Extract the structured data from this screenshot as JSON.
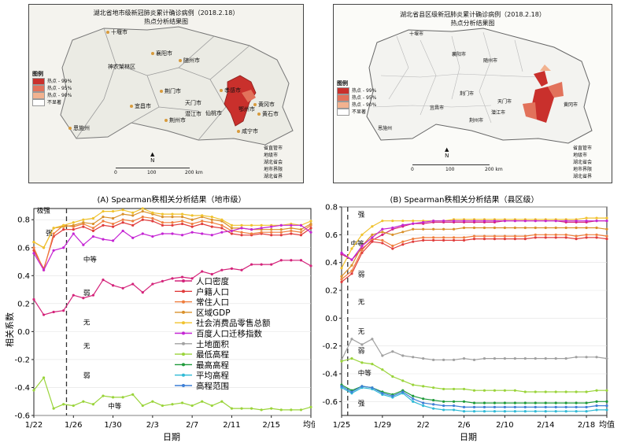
{
  "map_left": {
    "title_line1": "湖北省地市级新冠肺炎累计确诊病例（2018.2.18）",
    "title_line2": "热点分析结果图",
    "legend_title": "图例",
    "legend_items": [
      "热点 - 99%",
      "热点 - 95%",
      "热点 - 90%",
      "不显著"
    ],
    "legend_colors": [
      "#c9302c",
      "#e2725b",
      "#f2b28f",
      "#ffffff"
    ],
    "right_legend": [
      "省直管市",
      "地级市",
      "湖北省会",
      "地市界限",
      "湖北省界"
    ],
    "cities": [
      "十堰市",
      "襄阳市",
      "神农架林区",
      "随州市",
      "荆门市",
      "孝感市",
      "天门市",
      "黄冈市",
      "宜昌市",
      "潜江市",
      "仙桃市",
      "鄂州市",
      "黄石市",
      "荆州市",
      "恩施州",
      "咸宁市"
    ],
    "scale_labels": [
      "0",
      "100",
      "200 km"
    ],
    "north": "N"
  },
  "map_right": {
    "title_line1": "湖北省县区级新冠肺炎累计确诊病例（2018.2.18）",
    "title_line2": "热点分析结果图",
    "legend_title": "图例",
    "legend_items": [
      "热点 - 99%",
      "热点 - 95%",
      "热点 - 90%",
      "不显著"
    ],
    "legend_colors": [
      "#c9302c",
      "#e2725b",
      "#f2b28f",
      "#ffffff"
    ],
    "right_legend": [
      "省直管市",
      "地级市",
      "湖北省会",
      "地市界限",
      "湖北省界"
    ],
    "cities": [
      "十堰市",
      "襄阳市",
      "随州市",
      "荆门市",
      "天门市",
      "黄冈市",
      "宜昌市",
      "潜江市",
      "荆州市",
      "恩施州"
    ],
    "scale_labels": [
      "0",
      "100",
      "200 km"
    ],
    "north": "N"
  },
  "chart_data": [
    {
      "type": "line",
      "title": "(A) Spearman秩相关分析结果（地市级）",
      "xlabel": "日期",
      "ylabel": "相关系数",
      "ylim": [
        -0.6,
        0.88
      ],
      "yticks": [
        "-0.6",
        "-0.4",
        "-0.2",
        "0.0",
        "0.2",
        "0.4",
        "0.6",
        "0.8"
      ],
      "x_tick_labels": [
        "1/22",
        "1/26",
        "1/30",
        "2/3",
        "2/7",
        "2/11",
        "2/15",
        "均值"
      ],
      "x_tick_index": [
        0,
        4,
        8,
        12,
        16,
        20,
        24,
        28
      ],
      "n_points": 29,
      "dashed_line_index": 3.3,
      "region_labels": [
        {
          "text": "极强",
          "x": 0.3,
          "y": 0.85
        },
        {
          "text": "强",
          "x": 1.2,
          "y": 0.69
        },
        {
          "text": "中等",
          "x": 5.0,
          "y": 0.5
        },
        {
          "text": "弱",
          "x": 5.0,
          "y": 0.26
        },
        {
          "text": "无",
          "x": 5.0,
          "y": 0.05
        },
        {
          "text": "无",
          "x": 5.0,
          "y": -0.12
        },
        {
          "text": "弱",
          "x": 5.0,
          "y": -0.33
        },
        {
          "text": "中等",
          "x": 7.5,
          "y": -0.55
        }
      ],
      "legend": [
        "人口密度",
        "户籍人口",
        "常住人口",
        "区域GDP",
        "社会消费品零售总额",
        "百度人口迁移指数",
        "土地面积",
        "最低高程",
        "最高高程",
        "平均高程",
        "高程范围"
      ],
      "series": [
        {
          "name": "人口密度",
          "color": "#d4237a",
          "values": [
            0.23,
            0.12,
            0.14,
            0.15,
            0.26,
            0.24,
            0.26,
            0.37,
            0.33,
            0.31,
            0.34,
            0.28,
            0.34,
            0.36,
            0.38,
            0.39,
            0.38,
            0.43,
            0.41,
            0.44,
            0.45,
            0.44,
            0.48,
            0.48,
            0.48,
            0.51,
            0.51,
            0.51,
            0.47
          ]
        },
        {
          "name": "户籍人口",
          "color": "#e03c3c",
          "values": [
            0.58,
            0.45,
            0.68,
            0.73,
            0.73,
            0.75,
            0.72,
            0.76,
            0.75,
            0.78,
            0.76,
            0.8,
            0.79,
            0.76,
            0.76,
            0.77,
            0.75,
            0.77,
            0.75,
            0.74,
            0.7,
            0.69,
            0.69,
            0.7,
            0.69,
            0.69,
            0.7,
            0.69,
            0.74
          ]
        },
        {
          "name": "常住人口",
          "color": "#ef7d3c",
          "values": [
            0.6,
            0.44,
            0.7,
            0.76,
            0.75,
            0.77,
            0.74,
            0.79,
            0.77,
            0.8,
            0.79,
            0.82,
            0.81,
            0.78,
            0.78,
            0.79,
            0.77,
            0.79,
            0.78,
            0.76,
            0.72,
            0.71,
            0.7,
            0.71,
            0.71,
            0.71,
            0.72,
            0.71,
            0.76
          ]
        },
        {
          "name": "区域GDP",
          "color": "#d9902a",
          "values": [
            0.64,
            0.6,
            0.74,
            0.75,
            0.76,
            0.78,
            0.77,
            0.82,
            0.81,
            0.84,
            0.83,
            0.86,
            0.84,
            0.82,
            0.82,
            0.82,
            0.8,
            0.82,
            0.8,
            0.79,
            0.74,
            0.74,
            0.73,
            0.73,
            0.73,
            0.73,
            0.74,
            0.73,
            0.77
          ]
        },
        {
          "name": "社会消费品零售总额",
          "color": "#f0c22d",
          "values": [
            0.64,
            0.6,
            0.74,
            0.76,
            0.78,
            0.8,
            0.81,
            0.86,
            0.86,
            0.87,
            0.85,
            0.88,
            0.85,
            0.84,
            0.84,
            0.84,
            0.83,
            0.83,
            0.82,
            0.8,
            0.76,
            0.76,
            0.76,
            0.76,
            0.76,
            0.76,
            0.77,
            0.76,
            0.79
          ]
        },
        {
          "name": "百度人口迁移指数",
          "color": "#c525d4",
          "values": [
            0.56,
            0.44,
            0.58,
            0.6,
            0.7,
            0.62,
            0.68,
            0.66,
            0.65,
            0.72,
            0.67,
            0.7,
            0.68,
            0.7,
            0.7,
            0.69,
            0.71,
            0.7,
            0.69,
            0.71,
            0.72,
            0.74,
            0.73,
            0.74,
            0.75,
            0.76,
            0.76,
            0.76,
            0.71
          ]
        },
        {
          "name": "最低高程",
          "color": "#9ad43a",
          "values": [
            -0.42,
            -0.33,
            -0.55,
            -0.52,
            -0.53,
            -0.5,
            -0.52,
            -0.46,
            -0.47,
            -0.47,
            -0.45,
            -0.53,
            -0.5,
            -0.53,
            -0.52,
            -0.51,
            -0.53,
            -0.5,
            -0.53,
            -0.5,
            -0.55,
            -0.55,
            -0.55,
            -0.56,
            -0.55,
            -0.56,
            -0.56,
            -0.56,
            -0.54
          ]
        }
      ]
    },
    {
      "type": "line",
      "title": "(B) Spearman秩相关分析结果（县区级）",
      "xlabel": "日期",
      "ylim": [
        -0.7,
        0.8
      ],
      "yticks": [
        "-0.6",
        "-0.4",
        "-0.2",
        "0.0",
        "0.2",
        "0.4",
        "0.6",
        "0.8"
      ],
      "x_tick_labels": [
        "1/25",
        "1/29",
        "2/2",
        "2/6",
        "2/10",
        "2/14",
        "2/18",
        "均值"
      ],
      "x_tick_index": [
        0,
        4,
        8,
        12,
        16,
        20,
        24,
        26
      ],
      "n_points": 27,
      "dashed_line_index": 0.6,
      "region_labels": [
        {
          "text": "强",
          "x": 1.6,
          "y": 0.73
        },
        {
          "text": "中等",
          "x": 0.9,
          "y": 0.52
        },
        {
          "text": "弱",
          "x": 1.6,
          "y": 0.3
        },
        {
          "text": "无",
          "x": 1.6,
          "y": 0.1
        },
        {
          "text": "无",
          "x": 1.6,
          "y": -0.11
        },
        {
          "text": "弱",
          "x": 1.6,
          "y": -0.25
        },
        {
          "text": "中等",
          "x": 1.6,
          "y": -0.41
        },
        {
          "text": "强",
          "x": 1.6,
          "y": -0.63
        }
      ],
      "series": [
        {
          "name": "人口密度",
          "color": "#d4237a",
          "values": [
            0.46,
            0.42,
            0.5,
            0.56,
            0.6,
            0.64,
            0.66,
            0.68,
            0.68,
            0.69,
            0.69,
            0.69,
            0.69,
            0.69,
            0.69,
            0.69,
            0.7,
            0.7,
            0.7,
            0.7,
            0.7,
            0.7,
            0.69,
            0.69,
            0.69,
            0.7,
            0.7
          ]
        },
        {
          "name": "户籍人口",
          "color": "#e03c3c",
          "values": [
            0.26,
            0.32,
            0.47,
            0.55,
            0.54,
            0.5,
            0.53,
            0.55,
            0.56,
            0.56,
            0.56,
            0.56,
            0.56,
            0.57,
            0.57,
            0.57,
            0.57,
            0.57,
            0.57,
            0.58,
            0.58,
            0.58,
            0.58,
            0.57,
            0.58,
            0.58,
            0.57
          ]
        },
        {
          "name": "常住人口",
          "color": "#ef7d3c",
          "values": [
            0.28,
            0.34,
            0.49,
            0.57,
            0.56,
            0.52,
            0.55,
            0.57,
            0.58,
            0.58,
            0.58,
            0.58,
            0.58,
            0.59,
            0.59,
            0.59,
            0.59,
            0.59,
            0.59,
            0.6,
            0.6,
            0.6,
            0.6,
            0.59,
            0.6,
            0.6,
            0.59
          ]
        },
        {
          "name": "区域GDP",
          "color": "#d9902a",
          "values": [
            0.3,
            0.38,
            0.52,
            0.6,
            0.62,
            0.6,
            0.62,
            0.64,
            0.64,
            0.64,
            0.64,
            0.64,
            0.65,
            0.65,
            0.65,
            0.65,
            0.65,
            0.65,
            0.65,
            0.65,
            0.65,
            0.65,
            0.65,
            0.65,
            0.65,
            0.65,
            0.64
          ]
        },
        {
          "name": "社会消费品零售总额",
          "color": "#f0c22d",
          "values": [
            0.36,
            0.5,
            0.6,
            0.66,
            0.7,
            0.7,
            0.7,
            0.7,
            0.7,
            0.7,
            0.7,
            0.71,
            0.71,
            0.71,
            0.71,
            0.71,
            0.71,
            0.71,
            0.71,
            0.71,
            0.71,
            0.71,
            0.71,
            0.71,
            0.72,
            0.72,
            0.72
          ]
        },
        {
          "name": "百度人口迁移指数",
          "color": "#c525d4",
          "values": [
            0.47,
            0.42,
            0.52,
            0.58,
            0.64,
            0.65,
            0.67,
            0.68,
            0.69,
            0.7,
            0.7,
            0.7,
            0.7,
            0.7,
            0.7,
            0.7,
            0.7,
            0.7,
            0.7,
            0.7,
            0.7,
            0.7,
            0.7,
            0.7,
            0.7,
            0.7,
            0.7
          ]
        },
        {
          "name": "土地面积",
          "color": "#a0a0a0",
          "values": [
            -0.3,
            -0.15,
            -0.19,
            -0.15,
            -0.27,
            -0.24,
            -0.27,
            -0.28,
            -0.29,
            -0.3,
            -0.3,
            -0.3,
            -0.29,
            -0.3,
            -0.29,
            -0.29,
            -0.29,
            -0.29,
            -0.29,
            -0.29,
            -0.29,
            -0.29,
            -0.29,
            -0.28,
            -0.28,
            -0.28,
            -0.29
          ]
        },
        {
          "name": "最低高程",
          "color": "#9ad43a",
          "values": [
            -0.31,
            -0.29,
            -0.32,
            -0.33,
            -0.37,
            -0.42,
            -0.45,
            -0.48,
            -0.49,
            -0.5,
            -0.51,
            -0.51,
            -0.51,
            -0.52,
            -0.52,
            -0.52,
            -0.52,
            -0.52,
            -0.53,
            -0.53,
            -0.53,
            -0.53,
            -0.53,
            -0.53,
            -0.53,
            -0.52,
            -0.52
          ]
        },
        {
          "name": "最高高程",
          "color": "#1e9a3a",
          "values": [
            -0.48,
            -0.52,
            -0.49,
            -0.5,
            -0.53,
            -0.55,
            -0.52,
            -0.56,
            -0.58,
            -0.59,
            -0.6,
            -0.6,
            -0.6,
            -0.61,
            -0.61,
            -0.61,
            -0.61,
            -0.61,
            -0.61,
            -0.61,
            -0.61,
            -0.61,
            -0.61,
            -0.61,
            -0.61,
            -0.6,
            -0.6
          ]
        },
        {
          "name": "平均高程",
          "color": "#2fbad6",
          "values": [
            -0.5,
            -0.54,
            -0.5,
            -0.51,
            -0.55,
            -0.57,
            -0.54,
            -0.6,
            -0.63,
            -0.65,
            -0.66,
            -0.66,
            -0.67,
            -0.67,
            -0.67,
            -0.67,
            -0.67,
            -0.67,
            -0.67,
            -0.67,
            -0.67,
            -0.67,
            -0.67,
            -0.67,
            -0.67,
            -0.66,
            -0.66
          ]
        },
        {
          "name": "高程范围",
          "color": "#3d7fd6",
          "values": [
            -0.49,
            -0.53,
            -0.49,
            -0.5,
            -0.54,
            -0.56,
            -0.53,
            -0.58,
            -0.61,
            -0.62,
            -0.63,
            -0.63,
            -0.64,
            -0.64,
            -0.64,
            -0.64,
            -0.64,
            -0.64,
            -0.64,
            -0.64,
            -0.64,
            -0.64,
            -0.64,
            -0.64,
            -0.64,
            -0.63,
            -0.63
          ]
        }
      ]
    }
  ]
}
